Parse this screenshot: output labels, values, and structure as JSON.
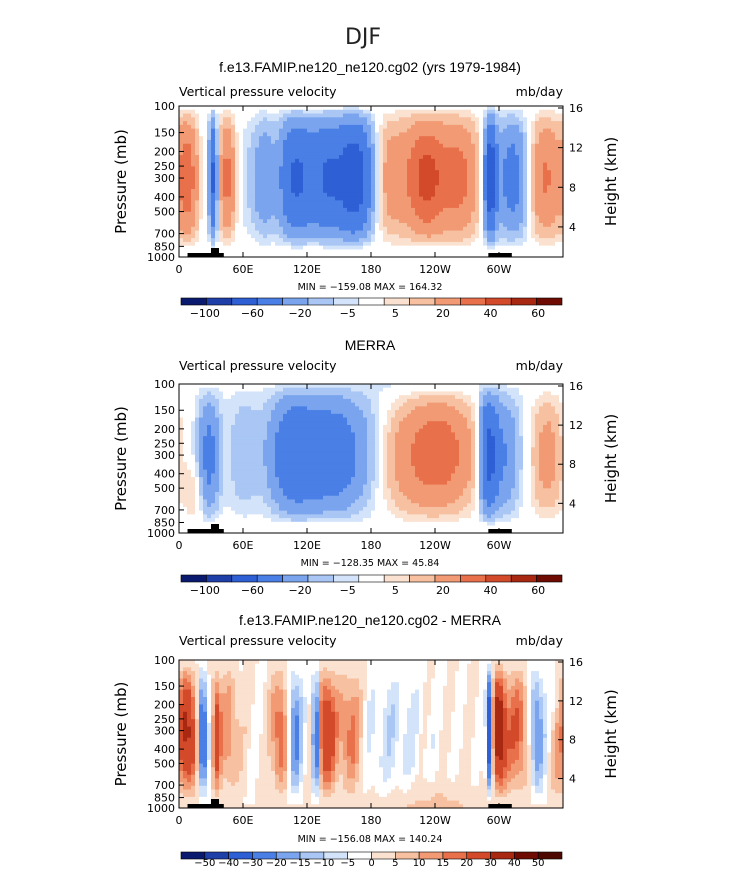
{
  "figure_title": "DJF",
  "colors": {
    "neg": [
      "#0a1a6e",
      "#1f3fa8",
      "#2f5fd4",
      "#4a7fe6",
      "#7aa5ee",
      "#a9c6f4",
      "#d3e4fa"
    ],
    "pos": [
      "#fbe1cf",
      "#f7c0a0",
      "#f29a74",
      "#e8704a",
      "#d24a2a",
      "#a82812",
      "#6e0c04"
    ],
    "ocean_white": "#ffffff",
    "topo": "#000000"
  },
  "chart_data": [
    {
      "id": "model",
      "type": "heatmap",
      "title": "f.e13.FAMIP.ne120_ne120.cg02 (yrs 1979-1984)",
      "left_label": "Vertical pressure velocity",
      "right_label": "mb/day",
      "ylabel": "Pressure (mb)",
      "ylabel_right": "Height (km)",
      "x_ticks": [
        "0",
        "60E",
        "120E",
        "180",
        "120W",
        "60W"
      ],
      "x_tick_lons": [
        0,
        60,
        120,
        180,
        240,
        300
      ],
      "y_ticks": [
        "100",
        "150",
        "200",
        "250",
        "300",
        "400",
        "500",
        "700",
        "850",
        "1000"
      ],
      "y_tick_p": [
        100,
        150,
        200,
        250,
        300,
        400,
        500,
        700,
        850,
        1000
      ],
      "height_ticks": [
        "4",
        "8",
        "12",
        "16"
      ],
      "stats": "MIN = −159.08  MAX = 164.32",
      "colorbar_labels": [
        "−100",
        "−60",
        "−20",
        "−5",
        "5",
        "20",
        "40",
        "60"
      ],
      "levels": [
        -150,
        -100,
        -80,
        -60,
        -40,
        -20,
        -10,
        -5,
        5,
        10,
        20,
        30,
        40,
        60,
        80
      ]
    },
    {
      "id": "merra",
      "type": "heatmap",
      "title": "MERRA",
      "left_label": "Vertical pressure velocity",
      "right_label": "mb/day",
      "ylabel": "Pressure (mb)",
      "ylabel_right": "Height (km)",
      "x_ticks": [
        "0",
        "60E",
        "120E",
        "180",
        "120W",
        "60W"
      ],
      "x_tick_lons": [
        0,
        60,
        120,
        180,
        240,
        300
      ],
      "y_ticks": [
        "100",
        "150",
        "200",
        "250",
        "300",
        "400",
        "500",
        "700",
        "850",
        "1000"
      ],
      "y_tick_p": [
        100,
        150,
        200,
        250,
        300,
        400,
        500,
        700,
        850,
        1000
      ],
      "height_ticks": [
        "4",
        "8",
        "12",
        "16"
      ],
      "stats": "MIN = −128.35  MAX =  45.84",
      "colorbar_labels": [
        "−100",
        "−60",
        "−20",
        "−5",
        "5",
        "20",
        "40",
        "60"
      ],
      "levels": [
        -150,
        -100,
        -80,
        -60,
        -40,
        -20,
        -10,
        -5,
        5,
        10,
        20,
        30,
        40,
        60,
        80
      ]
    },
    {
      "id": "diff",
      "type": "heatmap",
      "title": "f.e13.FAMIP.ne120_ne120.cg02 - MERRA",
      "left_label": "Vertical pressure velocity",
      "right_label": "mb/day",
      "ylabel": "Pressure (mb)",
      "ylabel_right": "Height (km)",
      "x_ticks": [
        "0",
        "60E",
        "120E",
        "180",
        "120W",
        "60W"
      ],
      "x_tick_lons": [
        0,
        60,
        120,
        180,
        240,
        300
      ],
      "y_ticks": [
        "100",
        "150",
        "200",
        "250",
        "300",
        "400",
        "500",
        "700",
        "850",
        "1000"
      ],
      "y_tick_p": [
        100,
        150,
        200,
        250,
        300,
        400,
        500,
        700,
        850,
        1000
      ],
      "height_ticks": [
        "4",
        "8",
        "12",
        "16"
      ],
      "stats": "MIN = −156.08  MAX = 140.24",
      "colorbar_labels": [
        "−50",
        "−40",
        "−30",
        "−20",
        "−15",
        "−10",
        "−5",
        "0",
        "5",
        "10",
        "15",
        "20",
        "30",
        "40",
        "50"
      ],
      "levels": [
        -60,
        -50,
        -40,
        -30,
        -20,
        -15,
        -10,
        -5,
        0,
        5,
        10,
        15,
        20,
        30,
        40,
        50,
        60
      ]
    }
  ]
}
